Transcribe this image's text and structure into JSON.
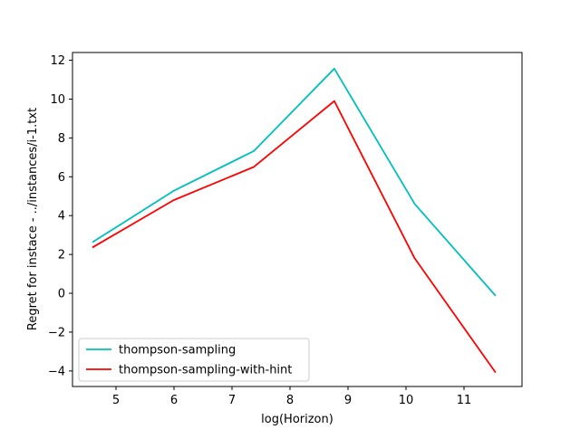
{
  "chart_data": {
    "type": "line",
    "xlabel": "log(Horizon)",
    "ylabel": "Regret for instace - ../instances/i-1.txt",
    "xlim": [
      4.25,
      12.0
    ],
    "ylim": [
      -4.8,
      12.4
    ],
    "xticks": [
      5,
      6,
      7,
      8,
      9,
      10,
      11
    ],
    "yticks": [
      -4,
      -2,
      0,
      2,
      4,
      6,
      8,
      10,
      12
    ],
    "xtick_labels": [
      "5",
      "6",
      "7",
      "8",
      "9",
      "10",
      "11"
    ],
    "ytick_labels": [
      "−4",
      "−2",
      "0",
      "2",
      "4",
      "6",
      "8",
      "10",
      "12"
    ],
    "x": [
      4.605,
      5.991,
      7.378,
      8.764,
      10.15,
      11.537
    ],
    "series": [
      {
        "name": "thompson-sampling",
        "color": "#00bfbf",
        "values": [
          2.65,
          5.27,
          7.33,
          11.57,
          4.6,
          -0.1
        ]
      },
      {
        "name": "thompson-sampling-with-hint",
        "color": "#ff0000",
        "values": [
          2.38,
          4.79,
          6.51,
          9.9,
          1.8,
          -4.05
        ]
      }
    ],
    "legend": {
      "placement": "lower-left"
    },
    "grid": false
  }
}
